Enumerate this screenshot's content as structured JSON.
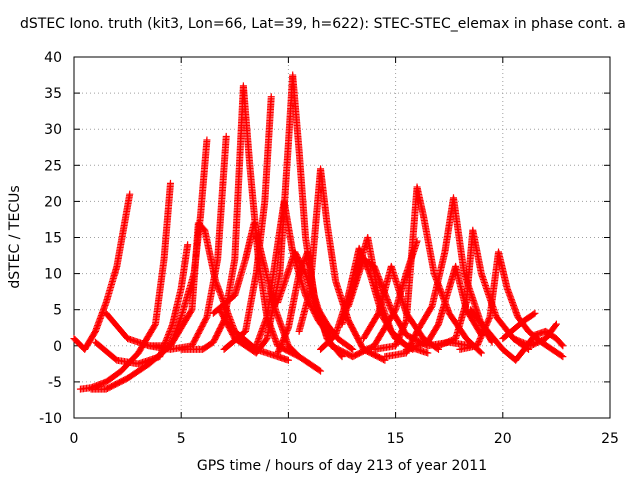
{
  "chart_data": {
    "type": "scatter",
    "title": "dSTEC Iono. truth (kit3, Lon=66, Lat=39, h=622): STEC-STEC_elemax in phase cont. a",
    "xlabel": "GPS time / hours of day 213 of year 2011",
    "ylabel": "dSTEC  / TECUs",
    "xlim": [
      0,
      25
    ],
    "ylim": [
      -10,
      40
    ],
    "x_ticks": [
      "0",
      "5",
      "10",
      "15",
      "20",
      "25"
    ],
    "y_ticks": [
      "-10",
      "-5",
      "0",
      "5",
      "10",
      "15",
      "20",
      "25",
      "30",
      "35",
      "40"
    ],
    "grid": true,
    "marker": "+",
    "color": "#ff0000",
    "series": [
      {
        "points": [
          [
            0.0,
            1.0
          ],
          [
            0.5,
            -0.5
          ],
          [
            1.0,
            2.0
          ],
          [
            1.5,
            6.0
          ],
          [
            2.0,
            11.0
          ],
          [
            2.3,
            16.0
          ],
          [
            2.6,
            21.0
          ]
        ]
      },
      {
        "points": [
          [
            0.3,
            -6.0
          ],
          [
            0.8,
            -5.8
          ],
          [
            1.5,
            -5.0
          ],
          [
            2.2,
            -3.5
          ],
          [
            3.0,
            -1.0
          ],
          [
            3.8,
            3.0
          ],
          [
            4.2,
            12.0
          ],
          [
            4.5,
            22.5
          ]
        ]
      },
      {
        "points": [
          [
            1.0,
            0.5
          ],
          [
            2.0,
            -2.0
          ],
          [
            3.0,
            -2.5
          ],
          [
            4.0,
            -1.5
          ],
          [
            4.6,
            3.0
          ],
          [
            5.0,
            8.0
          ],
          [
            5.3,
            14.0
          ]
        ]
      },
      {
        "points": [
          [
            0.8,
            -6.0
          ],
          [
            1.5,
            -6.0
          ],
          [
            2.5,
            -4.5
          ],
          [
            3.5,
            -2.5
          ],
          [
            4.5,
            0.0
          ],
          [
            5.0,
            4.0
          ],
          [
            5.6,
            10.0
          ],
          [
            5.9,
            18.0
          ],
          [
            6.2,
            28.5
          ]
        ]
      },
      {
        "points": [
          [
            1.5,
            4.5
          ],
          [
            2.5,
            1.0
          ],
          [
            3.5,
            0.0
          ],
          [
            4.5,
            -0.5
          ],
          [
            5.5,
            0.0
          ],
          [
            6.2,
            4.0
          ],
          [
            6.7,
            12.0
          ],
          [
            7.1,
            29.0
          ]
        ]
      },
      {
        "points": [
          [
            3.5,
            0.0
          ],
          [
            4.5,
            0.0
          ],
          [
            5.5,
            5.0
          ],
          [
            5.8,
            17.0
          ],
          [
            6.1,
            16.0
          ],
          [
            6.6,
            9.0
          ],
          [
            7.5,
            2.0
          ],
          [
            8.5,
            -0.5
          ],
          [
            9.5,
            -1.5
          ],
          [
            10.0,
            -2.0
          ]
        ]
      },
      {
        "points": [
          [
            5.0,
            -0.5
          ],
          [
            6.0,
            -0.5
          ],
          [
            6.5,
            0.5
          ],
          [
            7.0,
            3.5
          ],
          [
            7.5,
            12.0
          ],
          [
            7.9,
            36.0
          ],
          [
            8.2,
            25.0
          ],
          [
            8.6,
            12.0
          ],
          [
            9.0,
            4.0
          ],
          [
            9.5,
            0.0
          ],
          [
            10.5,
            -1.5
          ],
          [
            11.5,
            -3.5
          ]
        ]
      },
      {
        "points": [
          [
            6.5,
            4.5
          ],
          [
            7.5,
            7.0
          ],
          [
            8.0,
            12.0
          ],
          [
            8.4,
            17.0
          ],
          [
            8.8,
            12.0
          ],
          [
            9.4,
            5.0
          ],
          [
            10.0,
            0.0
          ],
          [
            10.5,
            -1.5
          ]
        ]
      },
      {
        "points": [
          [
            7.0,
            -0.5
          ],
          [
            8.0,
            2.0
          ],
          [
            8.5,
            10.0
          ],
          [
            8.9,
            20.0
          ],
          [
            9.2,
            34.5
          ]
        ]
      },
      {
        "points": [
          [
            6.8,
            5.0
          ],
          [
            7.5,
            1.0
          ],
          [
            8.5,
            -1.0
          ],
          [
            9.0,
            1.0
          ],
          [
            9.6,
            10.0
          ],
          [
            10.0,
            28.0
          ],
          [
            10.2,
            37.5
          ],
          [
            10.5,
            27.0
          ],
          [
            10.8,
            15.0
          ],
          [
            11.2,
            7.0
          ],
          [
            11.8,
            1.0
          ],
          [
            12.5,
            -1.5
          ]
        ]
      },
      {
        "points": [
          [
            8.5,
            0.0
          ],
          [
            9.0,
            4.0
          ],
          [
            9.5,
            14.0
          ],
          [
            9.8,
            20.0
          ],
          [
            10.2,
            13.0
          ],
          [
            10.8,
            7.0
          ],
          [
            11.4,
            3.5
          ],
          [
            12.0,
            1.0
          ]
        ]
      },
      {
        "points": [
          [
            9.5,
            6.0
          ],
          [
            10.3,
            13.0
          ],
          [
            10.8,
            10.0
          ],
          [
            11.3,
            5.5
          ],
          [
            11.8,
            3.0
          ],
          [
            12.3,
            1.0
          ],
          [
            13.0,
            -0.5
          ]
        ]
      },
      {
        "points": [
          [
            9.5,
            -1.0
          ],
          [
            10.0,
            2.5
          ],
          [
            10.5,
            10.0
          ],
          [
            10.9,
            13.0
          ],
          [
            11.3,
            5.0
          ],
          [
            12.0,
            0.0
          ],
          [
            13.0,
            -1.5
          ],
          [
            14.0,
            0.0
          ],
          [
            15.0,
            5.0
          ],
          [
            15.5,
            10.0
          ],
          [
            16.0,
            14.5
          ]
        ]
      },
      {
        "points": [
          [
            10.5,
            2.0
          ],
          [
            11.0,
            7.5
          ],
          [
            11.5,
            24.5
          ],
          [
            11.8,
            17.0
          ],
          [
            12.2,
            9.0
          ],
          [
            12.8,
            3.5
          ],
          [
            13.5,
            -0.5
          ],
          [
            14.5,
            -2.0
          ]
        ]
      },
      {
        "points": [
          [
            11.5,
            -0.5
          ],
          [
            12.2,
            1.5
          ],
          [
            12.8,
            7.0
          ],
          [
            13.3,
            13.5
          ],
          [
            13.8,
            10.0
          ],
          [
            14.4,
            4.0
          ],
          [
            15.0,
            1.0
          ],
          [
            15.8,
            -0.5
          ]
        ]
      },
      {
        "points": [
          [
            12.5,
            3.0
          ],
          [
            13.2,
            10.0
          ],
          [
            13.7,
            15.0
          ],
          [
            14.2,
            7.0
          ],
          [
            14.8,
            2.0
          ],
          [
            15.5,
            0.0
          ],
          [
            16.5,
            -1.0
          ]
        ]
      },
      {
        "points": [
          [
            12.8,
            5.5
          ],
          [
            13.5,
            12.0
          ],
          [
            14.0,
            11.0
          ],
          [
            14.8,
            5.0
          ],
          [
            15.5,
            1.5
          ],
          [
            16.5,
            0.0
          ],
          [
            17.5,
            0.5
          ],
          [
            18.5,
            0.0
          ]
        ]
      },
      {
        "points": [
          [
            13.5,
            1.0
          ],
          [
            14.2,
            4.5
          ],
          [
            14.8,
            11.0
          ],
          [
            15.5,
            4.5
          ],
          [
            16.3,
            1.0
          ],
          [
            17.0,
            -0.5
          ]
        ]
      },
      {
        "points": [
          [
            14.0,
            -0.5
          ],
          [
            15.0,
            0.0
          ],
          [
            15.5,
            3.5
          ],
          [
            16.0,
            22.0
          ],
          [
            16.3,
            18.0
          ],
          [
            16.8,
            10.0
          ],
          [
            17.5,
            4.5
          ],
          [
            18.3,
            1.0
          ],
          [
            19.0,
            -1.0
          ]
        ]
      },
      {
        "points": [
          [
            14.5,
            -1.5
          ],
          [
            15.5,
            -1.0
          ],
          [
            16.0,
            2.0
          ],
          [
            16.7,
            5.5
          ],
          [
            17.3,
            13.0
          ],
          [
            17.7,
            20.5
          ],
          [
            18.2,
            10.0
          ],
          [
            19.0,
            3.0
          ],
          [
            19.5,
            0.5
          ]
        ]
      },
      {
        "points": [
          [
            15.5,
            -0.5
          ],
          [
            16.5,
            0.5
          ],
          [
            17.0,
            3.0
          ],
          [
            17.5,
            8.0
          ],
          [
            17.8,
            11.0
          ],
          [
            18.3,
            5.0
          ],
          [
            19.0,
            1.5
          ]
        ]
      },
      {
        "points": [
          [
            17.0,
            0.0
          ],
          [
            17.8,
            1.0
          ],
          [
            18.3,
            6.0
          ],
          [
            18.6,
            16.0
          ],
          [
            19.0,
            10.0
          ],
          [
            19.7,
            4.0
          ],
          [
            20.5,
            1.0
          ],
          [
            21.2,
            -0.5
          ]
        ]
      },
      {
        "points": [
          [
            18.5,
            5.0
          ],
          [
            19.3,
            2.0
          ],
          [
            20.0,
            -0.5
          ],
          [
            20.6,
            -2.0
          ],
          [
            21.0,
            -0.5
          ],
          [
            21.5,
            1.5
          ],
          [
            22.0,
            2.0
          ],
          [
            22.5,
            1.0
          ],
          [
            22.8,
            0.0
          ]
        ]
      },
      {
        "points": [
          [
            18.0,
            -0.5
          ],
          [
            18.8,
            0.0
          ],
          [
            19.4,
            4.0
          ],
          [
            19.8,
            13.0
          ],
          [
            20.2,
            8.0
          ],
          [
            20.7,
            4.0
          ],
          [
            21.2,
            2.0
          ],
          [
            21.8,
            0.5
          ],
          [
            22.8,
            -1.5
          ]
        ]
      },
      {
        "points": [
          [
            20.0,
            1.0
          ],
          [
            21.0,
            3.5
          ],
          [
            21.5,
            4.5
          ]
        ]
      },
      {
        "points": [
          [
            20.5,
            1.0
          ],
          [
            21.3,
            0.0
          ],
          [
            22.0,
            1.0
          ],
          [
            22.5,
            3.0
          ]
        ]
      }
    ]
  }
}
